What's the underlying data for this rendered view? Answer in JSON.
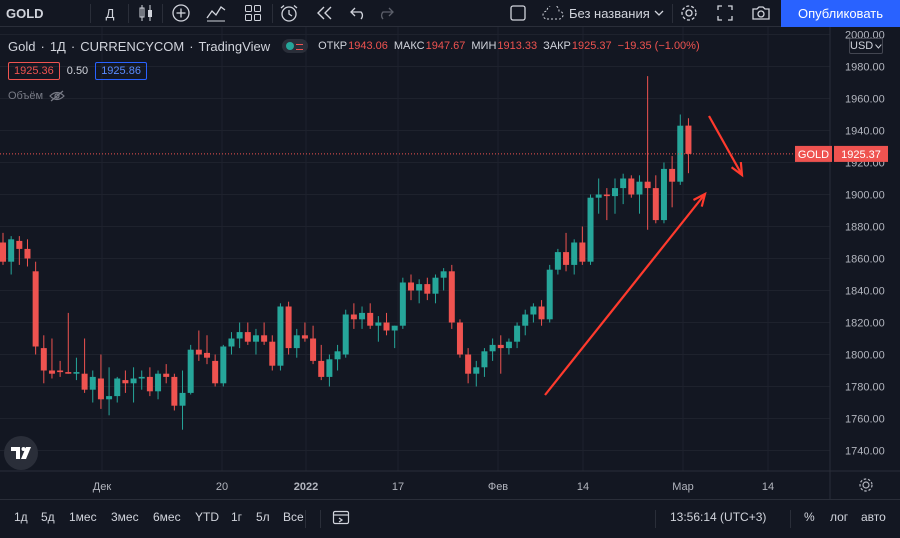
{
  "toolbar": {
    "symbol": "GOLD",
    "interval": "Д",
    "layout_name": "Без названия",
    "publish_label": "Опубликовать",
    "icons": [
      "candles-icon",
      "plus-circle-icon",
      "indicators-icon",
      "layout-grid-icon",
      "alert-clock-icon",
      "replay-icon",
      "undo-icon",
      "redo-icon",
      "square-icon",
      "cloud-icon",
      "chevron-down-icon",
      "settings-icon",
      "fullscreen-icon",
      "camera-icon"
    ]
  },
  "legend": {
    "symbol": "Gold",
    "interval": "1Д",
    "source": "CURRENCYCOM",
    "provider": "TradingView",
    "open_label": "ОТКР",
    "open": "1943.06",
    "high_label": "МАКС",
    "high": "1947.67",
    "low_label": "МИН",
    "low": "1913.33",
    "close_label": "ЗАКР",
    "close": "1925.37",
    "change": "−19.35 (−1.00%)",
    "sell_price": "1925.36",
    "spread": "0.50",
    "buy_price": "1925.86",
    "volume_label": "Объём"
  },
  "price_axis": {
    "currency": "USD",
    "labels": [
      "2000.00",
      "1980.00",
      "1960.00",
      "1940.00",
      "1920.00",
      "1900.00",
      "1880.00",
      "1860.00",
      "1840.00",
      "1820.00",
      "1800.00",
      "1780.00",
      "1760.00",
      "1740.00"
    ],
    "current_symbol": "GOLD",
    "current_price": "1925.37"
  },
  "time_axis": {
    "labels": [
      "Дек",
      "20",
      "2022",
      "17",
      "Фев",
      "14",
      "Мар",
      "14"
    ]
  },
  "colors": {
    "up": "#26a69a",
    "down": "#ef5350",
    "accent": "#2962ff",
    "background": "#131722",
    "arrow": "#ff3a2d"
  },
  "chart_data": {
    "type": "candlestick",
    "y_range": [
      1730,
      2010
    ],
    "candles": [
      {
        "o": 1870,
        "h": 1876,
        "l": 1856,
        "c": 1858
      },
      {
        "o": 1858,
        "h": 1874,
        "l": 1850,
        "c": 1872
      },
      {
        "o": 1871,
        "h": 1874,
        "l": 1856,
        "c": 1866
      },
      {
        "o": 1866,
        "h": 1872,
        "l": 1855,
        "c": 1860
      },
      {
        "o": 1852,
        "h": 1858,
        "l": 1800,
        "c": 1805
      },
      {
        "o": 1804,
        "h": 1812,
        "l": 1782,
        "c": 1790
      },
      {
        "o": 1790,
        "h": 1810,
        "l": 1785,
        "c": 1788
      },
      {
        "o": 1790,
        "h": 1796,
        "l": 1786,
        "c": 1789
      },
      {
        "o": 1789,
        "h": 1826,
        "l": 1788,
        "c": 1788
      },
      {
        "o": 1788,
        "h": 1798,
        "l": 1784,
        "c": 1789
      },
      {
        "o": 1788,
        "h": 1810,
        "l": 1776,
        "c": 1778
      },
      {
        "o": 1778,
        "h": 1790,
        "l": 1770,
        "c": 1786
      },
      {
        "o": 1785,
        "h": 1800,
        "l": 1766,
        "c": 1772
      },
      {
        "o": 1772,
        "h": 1792,
        "l": 1762,
        "c": 1774
      },
      {
        "o": 1774,
        "h": 1786,
        "l": 1770,
        "c": 1785
      },
      {
        "o": 1784,
        "h": 1790,
        "l": 1776,
        "c": 1782
      },
      {
        "o": 1782,
        "h": 1792,
        "l": 1770,
        "c": 1785
      },
      {
        "o": 1785,
        "h": 1790,
        "l": 1778,
        "c": 1786
      },
      {
        "o": 1786,
        "h": 1792,
        "l": 1774,
        "c": 1777
      },
      {
        "o": 1777,
        "h": 1790,
        "l": 1772,
        "c": 1788
      },
      {
        "o": 1788,
        "h": 1794,
        "l": 1782,
        "c": 1786
      },
      {
        "o": 1786,
        "h": 1788,
        "l": 1765,
        "c": 1768
      },
      {
        "o": 1768,
        "h": 1790,
        "l": 1753,
        "c": 1776
      },
      {
        "o": 1776,
        "h": 1806,
        "l": 1775,
        "c": 1803
      },
      {
        "o": 1803,
        "h": 1815,
        "l": 1796,
        "c": 1800
      },
      {
        "o": 1801,
        "h": 1812,
        "l": 1794,
        "c": 1798
      },
      {
        "o": 1796,
        "h": 1800,
        "l": 1780,
        "c": 1782
      },
      {
        "o": 1782,
        "h": 1806,
        "l": 1780,
        "c": 1805
      },
      {
        "o": 1805,
        "h": 1814,
        "l": 1800,
        "c": 1810
      },
      {
        "o": 1810,
        "h": 1820,
        "l": 1804,
        "c": 1814
      },
      {
        "o": 1814,
        "h": 1820,
        "l": 1806,
        "c": 1808
      },
      {
        "o": 1808,
        "h": 1816,
        "l": 1800,
        "c": 1812
      },
      {
        "o": 1812,
        "h": 1820,
        "l": 1806,
        "c": 1808
      },
      {
        "o": 1808,
        "h": 1812,
        "l": 1790,
        "c": 1793
      },
      {
        "o": 1793,
        "h": 1832,
        "l": 1790,
        "c": 1830
      },
      {
        "o": 1830,
        "h": 1833,
        "l": 1800,
        "c": 1804
      },
      {
        "o": 1804,
        "h": 1816,
        "l": 1798,
        "c": 1812
      },
      {
        "o": 1812,
        "h": 1820,
        "l": 1808,
        "c": 1810
      },
      {
        "o": 1810,
        "h": 1818,
        "l": 1794,
        "c": 1796
      },
      {
        "o": 1796,
        "h": 1806,
        "l": 1784,
        "c": 1786
      },
      {
        "o": 1786,
        "h": 1800,
        "l": 1780,
        "c": 1797
      },
      {
        "o": 1797,
        "h": 1806,
        "l": 1790,
        "c": 1802
      },
      {
        "o": 1800,
        "h": 1828,
        "l": 1798,
        "c": 1825
      },
      {
        "o": 1825,
        "h": 1832,
        "l": 1816,
        "c": 1822
      },
      {
        "o": 1822,
        "h": 1830,
        "l": 1816,
        "c": 1826
      },
      {
        "o": 1826,
        "h": 1832,
        "l": 1816,
        "c": 1818
      },
      {
        "o": 1818,
        "h": 1824,
        "l": 1808,
        "c": 1820
      },
      {
        "o": 1820,
        "h": 1826,
        "l": 1812,
        "c": 1815
      },
      {
        "o": 1815,
        "h": 1818,
        "l": 1804,
        "c": 1818
      },
      {
        "o": 1818,
        "h": 1848,
        "l": 1816,
        "c": 1845
      },
      {
        "o": 1845,
        "h": 1850,
        "l": 1834,
        "c": 1840
      },
      {
        "o": 1840,
        "h": 1847,
        "l": 1832,
        "c": 1844
      },
      {
        "o": 1844,
        "h": 1848,
        "l": 1834,
        "c": 1838
      },
      {
        "o": 1838,
        "h": 1850,
        "l": 1832,
        "c": 1848
      },
      {
        "o": 1848,
        "h": 1854,
        "l": 1840,
        "c": 1852
      },
      {
        "o": 1852,
        "h": 1856,
        "l": 1816,
        "c": 1820
      },
      {
        "o": 1820,
        "h": 1822,
        "l": 1798,
        "c": 1800
      },
      {
        "o": 1800,
        "h": 1804,
        "l": 1782,
        "c": 1788
      },
      {
        "o": 1788,
        "h": 1796,
        "l": 1780,
        "c": 1792
      },
      {
        "o": 1792,
        "h": 1804,
        "l": 1786,
        "c": 1802
      },
      {
        "o": 1802,
        "h": 1810,
        "l": 1796,
        "c": 1806
      },
      {
        "o": 1806,
        "h": 1812,
        "l": 1788,
        "c": 1804
      },
      {
        "o": 1804,
        "h": 1810,
        "l": 1800,
        "c": 1808
      },
      {
        "o": 1808,
        "h": 1820,
        "l": 1804,
        "c": 1818
      },
      {
        "o": 1818,
        "h": 1828,
        "l": 1812,
        "c": 1825
      },
      {
        "o": 1825,
        "h": 1832,
        "l": 1820,
        "c": 1830
      },
      {
        "o": 1830,
        "h": 1834,
        "l": 1818,
        "c": 1822
      },
      {
        "o": 1822,
        "h": 1856,
        "l": 1820,
        "c": 1853
      },
      {
        "o": 1853,
        "h": 1866,
        "l": 1850,
        "c": 1864
      },
      {
        "o": 1864,
        "h": 1876,
        "l": 1852,
        "c": 1856
      },
      {
        "o": 1856,
        "h": 1872,
        "l": 1850,
        "c": 1870
      },
      {
        "o": 1870,
        "h": 1880,
        "l": 1856,
        "c": 1858
      },
      {
        "o": 1858,
        "h": 1900,
        "l": 1856,
        "c": 1898
      },
      {
        "o": 1898,
        "h": 1910,
        "l": 1888,
        "c": 1900
      },
      {
        "o": 1900,
        "h": 1904,
        "l": 1884,
        "c": 1899
      },
      {
        "o": 1899,
        "h": 1910,
        "l": 1888,
        "c": 1904
      },
      {
        "o": 1904,
        "h": 1913,
        "l": 1894,
        "c": 1910
      },
      {
        "o": 1910,
        "h": 1912,
        "l": 1898,
        "c": 1900
      },
      {
        "o": 1900,
        "h": 1912,
        "l": 1888,
        "c": 1908
      },
      {
        "o": 1908,
        "h": 1974,
        "l": 1878,
        "c": 1904
      },
      {
        "o": 1904,
        "h": 1912,
        "l": 1882,
        "c": 1884
      },
      {
        "o": 1884,
        "h": 1920,
        "l": 1882,
        "c": 1916
      },
      {
        "o": 1916,
        "h": 1924,
        "l": 1892,
        "c": 1908
      },
      {
        "o": 1908,
        "h": 1950,
        "l": 1906,
        "c": 1943
      },
      {
        "o": 1943.06,
        "h": 1947.67,
        "l": 1913.33,
        "c": 1925.37
      }
    ]
  }
}
